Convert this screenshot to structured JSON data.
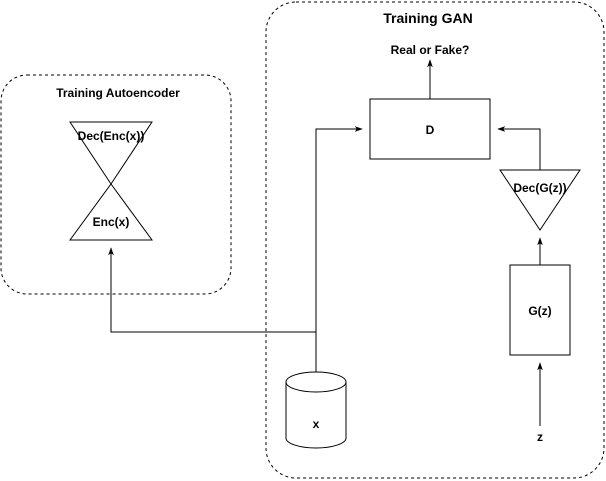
{
  "autoencoder_group": {
    "title": "Training Autoencoder"
  },
  "gan_group": {
    "title": "Training GAN"
  },
  "nodes": {
    "decoder_output": "Dec(Enc(x))",
    "encoder": "Enc(x)",
    "discriminator": "D",
    "discriminator_output": "Real or Fake?",
    "gan_decoder": "Dec(G(z))",
    "generator": "G(z)",
    "data_store": "x",
    "noise": "z"
  }
}
